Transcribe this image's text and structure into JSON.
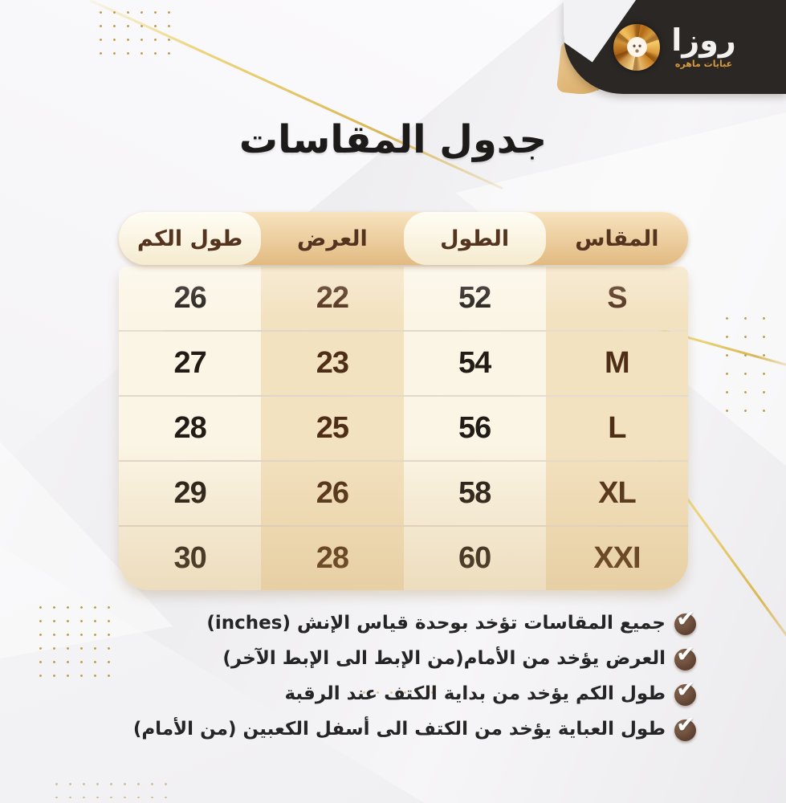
{
  "brand": {
    "name": "روزا",
    "tagline": "عبايات ماهره"
  },
  "page": {
    "title": "جدول المقاسات"
  },
  "table": {
    "headers": [
      "المقاس",
      "الطول",
      "العرض",
      "طول الكم"
    ],
    "rows": [
      [
        "S",
        "52",
        "22",
        "26"
      ],
      [
        "M",
        "54",
        "23",
        "27"
      ],
      [
        "L",
        "56",
        "25",
        "28"
      ],
      [
        "XL",
        "58",
        "26",
        "29"
      ],
      [
        "XXI",
        "60",
        "28",
        "30"
      ]
    ]
  },
  "notes": [
    "جميع المقاسات تؤخد بوحدة قياس الإنش (inches)",
    "العرض يؤخد من الأمام(من الإبط الى الإبط الآخر)",
    "طول الكم يؤخد من بداية الكتف عند الرقبة",
    "طول العباية يؤخد من الكتف الى أسفل الكعبين (من الأمام)"
  ],
  "icons": {
    "logo": "rose-swirl-logo",
    "note_bullet": "check-icon"
  },
  "colors": {
    "badge_background": "#2b2725",
    "brand_gold": "#d79b3e",
    "header_tan": "#e2ba81",
    "header_cream": "#fffdf4",
    "column_cream": "#fbf5e5",
    "column_beige": "#f3e2c0",
    "header_text": "#54341f",
    "value_dark": "#221c17",
    "value_brown": "#4e2e17",
    "gold_line": "#d9b754",
    "check_brown": "#5f4132"
  }
}
